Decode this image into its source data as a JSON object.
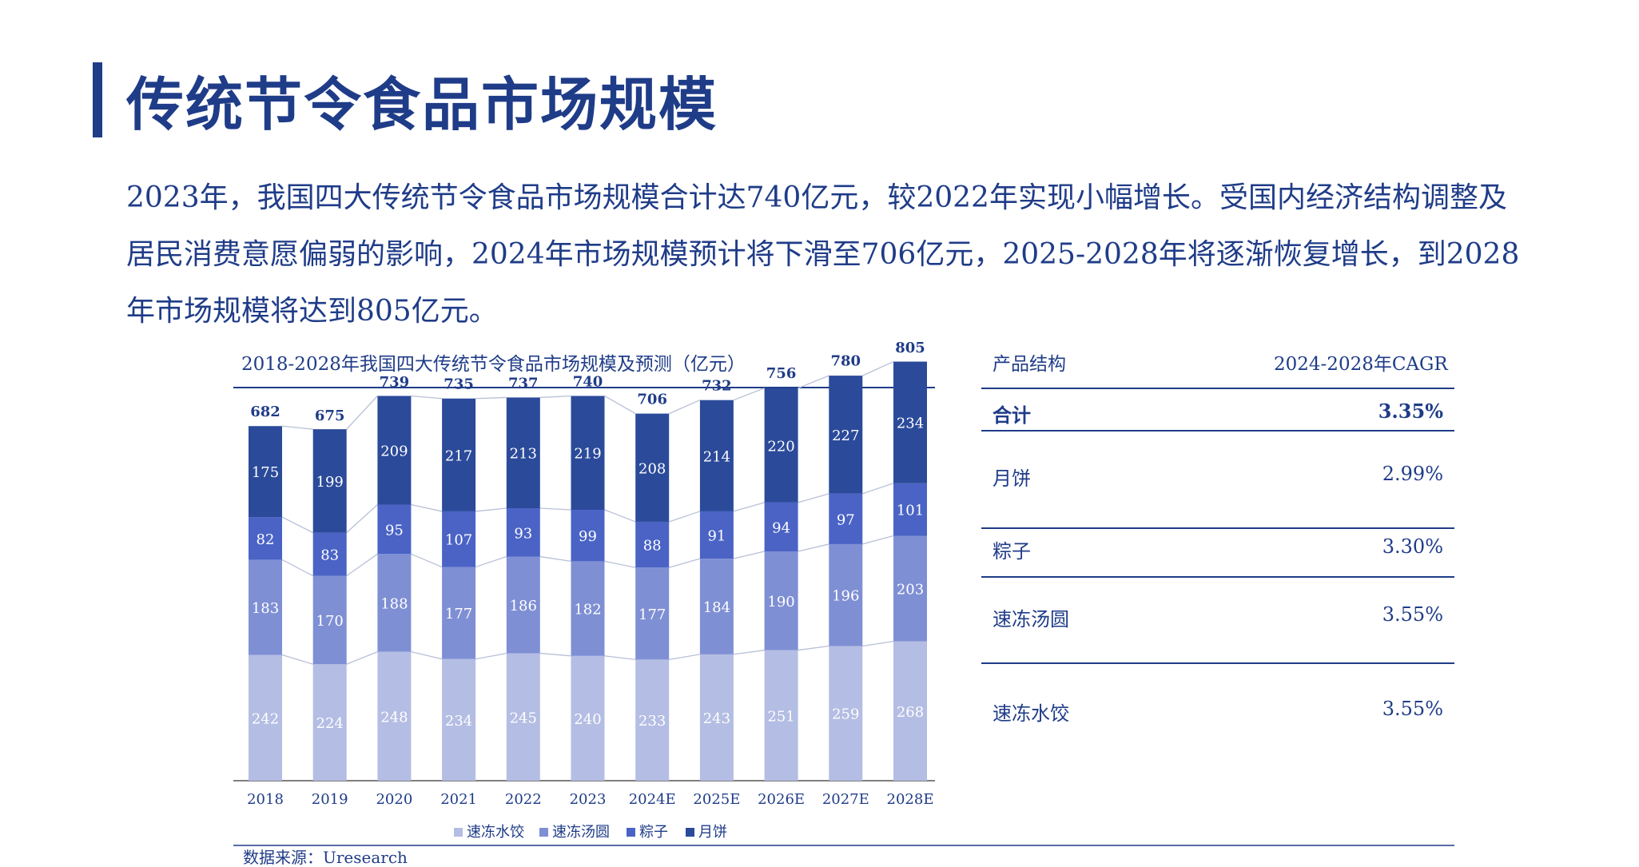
{
  "page": {
    "title": "传统节令食品市场规模",
    "paragraph": "2023年，我国四大传统节令食品市场规模合计达740亿元，较2022年实现小幅增长。受国内经济结构调整及居民消费意愿偏弱的影响，2024年市场规模预计将下滑至706亿元，2025-2028年将逐渐恢复增长，到2028年市场规模将达到805亿元。"
  },
  "chart_data": {
    "type": "bar",
    "stacked": true,
    "title": "2018-2028年我国四大传统节令食品市场规模及预测（亿元）",
    "categories": [
      "2018",
      "2019",
      "2020",
      "2021",
      "2022",
      "2023",
      "2024E",
      "2025E",
      "2026E",
      "2027E",
      "2028E"
    ],
    "series": [
      {
        "name": "速冻水饺",
        "color": "#b4bde3",
        "values": [
          242,
          224,
          248,
          234,
          245,
          240,
          233,
          243,
          251,
          259,
          268
        ]
      },
      {
        "name": "速冻汤圆",
        "color": "#7f8fd4",
        "values": [
          183,
          170,
          188,
          177,
          186,
          182,
          177,
          184,
          190,
          196,
          203
        ]
      },
      {
        "name": "粽子",
        "color": "#4a63c5",
        "values": [
          82,
          83,
          95,
          107,
          93,
          99,
          88,
          91,
          94,
          97,
          101
        ]
      },
      {
        "name": "月饼",
        "color": "#2b4a9a",
        "values": [
          175,
          199,
          209,
          217,
          213,
          219,
          208,
          214,
          220,
          227,
          234
        ]
      }
    ],
    "totals": [
      682,
      675,
      739,
      735,
      737,
      740,
      706,
      732,
      756,
      780,
      805
    ],
    "ylim": [
      0,
      850
    ],
    "legend": "bottom",
    "grid": false
  },
  "table": {
    "header_left": "产品结构",
    "header_right": "2024-2028年CAGR",
    "rows": [
      {
        "name": "合计",
        "value": "3.35%"
      },
      {
        "name": "月饼",
        "value": "2.99%"
      },
      {
        "name": "粽子",
        "value": "3.30%"
      },
      {
        "name": "速冻汤圆",
        "value": "3.55%"
      },
      {
        "name": "速冻水饺",
        "value": "3.55%"
      }
    ]
  },
  "source": "数据来源：Uresearch"
}
